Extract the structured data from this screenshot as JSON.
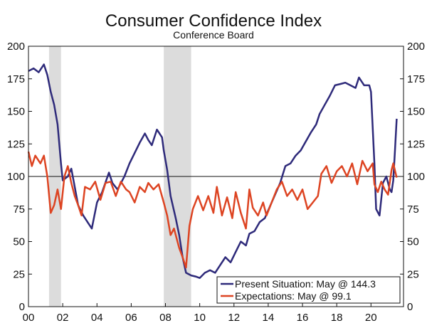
{
  "chart_data": {
    "type": "line",
    "title": "Consumer Confidence Index",
    "subtitle": "Conference Board",
    "xlabel": "",
    "ylabel": "",
    "xlim": [
      2000.0,
      2021.9
    ],
    "ylim": [
      0,
      200
    ],
    "x_ticks": [
      2000,
      2002,
      2004,
      2006,
      2008,
      2010,
      2012,
      2014,
      2016,
      2018,
      2020
    ],
    "x_tick_labels": [
      "00",
      "02",
      "04",
      "06",
      "08",
      "10",
      "12",
      "14",
      "16",
      "18",
      "20"
    ],
    "y_ticks": [
      0,
      25,
      50,
      75,
      100,
      125,
      150,
      175,
      200
    ],
    "y_tick_labels": [
      "0",
      "25",
      "50",
      "75",
      "100",
      "125",
      "150",
      "175",
      "200"
    ],
    "reference_line": 100,
    "recessions": [
      [
        2001.2,
        2001.9
      ],
      [
        2007.9,
        2009.5
      ]
    ],
    "legend_position": "bottom-right",
    "series": [
      {
        "name": "Present Situation: May @ 144.3",
        "color": "#2e2a7a",
        "points": [
          [
            2000.0,
            181
          ],
          [
            2000.3,
            183
          ],
          [
            2000.6,
            180
          ],
          [
            2000.9,
            186
          ],
          [
            2001.1,
            178
          ],
          [
            2001.3,
            165
          ],
          [
            2001.5,
            155
          ],
          [
            2001.7,
            140
          ],
          [
            2001.9,
            110
          ],
          [
            2002.0,
            97
          ],
          [
            2002.3,
            100
          ],
          [
            2002.5,
            106
          ],
          [
            2002.7,
            92
          ],
          [
            2002.9,
            78
          ],
          [
            2003.2,
            70
          ],
          [
            2003.5,
            64
          ],
          [
            2003.7,
            60
          ],
          [
            2004.0,
            80
          ],
          [
            2004.3,
            88
          ],
          [
            2004.7,
            103
          ],
          [
            2004.9,
            95
          ],
          [
            2005.2,
            90
          ],
          [
            2005.6,
            100
          ],
          [
            2005.9,
            110
          ],
          [
            2006.2,
            118
          ],
          [
            2006.5,
            126
          ],
          [
            2006.8,
            133
          ],
          [
            2007.0,
            128
          ],
          [
            2007.2,
            124
          ],
          [
            2007.5,
            136
          ],
          [
            2007.8,
            130
          ],
          [
            2007.9,
            120
          ],
          [
            2008.1,
            105
          ],
          [
            2008.3,
            85
          ],
          [
            2008.6,
            68
          ],
          [
            2008.8,
            55
          ],
          [
            2009.0,
            38
          ],
          [
            2009.2,
            26
          ],
          [
            2009.5,
            24
          ],
          [
            2009.8,
            23
          ],
          [
            2010.0,
            22
          ],
          [
            2010.3,
            26
          ],
          [
            2010.6,
            28
          ],
          [
            2010.9,
            26
          ],
          [
            2011.2,
            32
          ],
          [
            2011.5,
            38
          ],
          [
            2011.8,
            34
          ],
          [
            2012.1,
            42
          ],
          [
            2012.4,
            50
          ],
          [
            2012.7,
            47
          ],
          [
            2012.9,
            56
          ],
          [
            2013.2,
            58
          ],
          [
            2013.5,
            65
          ],
          [
            2013.8,
            68
          ],
          [
            2014.1,
            77
          ],
          [
            2014.4,
            86
          ],
          [
            2014.7,
            95
          ],
          [
            2015.0,
            108
          ],
          [
            2015.3,
            110
          ],
          [
            2015.6,
            116
          ],
          [
            2015.9,
            120
          ],
          [
            2016.2,
            127
          ],
          [
            2016.5,
            134
          ],
          [
            2016.8,
            140
          ],
          [
            2017.0,
            148
          ],
          [
            2017.3,
            155
          ],
          [
            2017.6,
            162
          ],
          [
            2017.9,
            170
          ],
          [
            2018.2,
            171
          ],
          [
            2018.5,
            172
          ],
          [
            2018.8,
            170
          ],
          [
            2019.1,
            168
          ],
          [
            2019.3,
            176
          ],
          [
            2019.6,
            170
          ],
          [
            2019.9,
            170
          ],
          [
            2020.0,
            165
          ],
          [
            2020.2,
            110
          ],
          [
            2020.3,
            75
          ],
          [
            2020.5,
            70
          ],
          [
            2020.7,
            95
          ],
          [
            2020.9,
            100
          ],
          [
            2021.1,
            90
          ],
          [
            2021.2,
            88
          ],
          [
            2021.3,
            97
          ],
          [
            2021.4,
            120
          ],
          [
            2021.5,
            144.3
          ]
        ]
      },
      {
        "name": "Expectations: May @ 99.1",
        "color": "#dd4422",
        "points": [
          [
            2000.0,
            119
          ],
          [
            2000.2,
            108
          ],
          [
            2000.4,
            116
          ],
          [
            2000.7,
            110
          ],
          [
            2000.9,
            116
          ],
          [
            2001.1,
            100
          ],
          [
            2001.3,
            72
          ],
          [
            2001.5,
            78
          ],
          [
            2001.7,
            90
          ],
          [
            2001.9,
            75
          ],
          [
            2002.1,
            100
          ],
          [
            2002.3,
            108
          ],
          [
            2002.5,
            95
          ],
          [
            2002.7,
            85
          ],
          [
            2002.9,
            78
          ],
          [
            2003.1,
            70
          ],
          [
            2003.3,
            92
          ],
          [
            2003.6,
            90
          ],
          [
            2003.9,
            96
          ],
          [
            2004.2,
            82
          ],
          [
            2004.5,
            95
          ],
          [
            2004.8,
            96
          ],
          [
            2005.1,
            85
          ],
          [
            2005.4,
            96
          ],
          [
            2005.7,
            90
          ],
          [
            2005.9,
            88
          ],
          [
            2006.2,
            80
          ],
          [
            2006.5,
            92
          ],
          [
            2006.8,
            88
          ],
          [
            2007.0,
            95
          ],
          [
            2007.3,
            90
          ],
          [
            2007.6,
            94
          ],
          [
            2007.9,
            80
          ],
          [
            2008.1,
            70
          ],
          [
            2008.3,
            55
          ],
          [
            2008.5,
            60
          ],
          [
            2008.8,
            45
          ],
          [
            2009.0,
            38
          ],
          [
            2009.2,
            30
          ],
          [
            2009.4,
            62
          ],
          [
            2009.6,
            75
          ],
          [
            2009.9,
            85
          ],
          [
            2010.2,
            74
          ],
          [
            2010.5,
            85
          ],
          [
            2010.8,
            72
          ],
          [
            2011.0,
            92
          ],
          [
            2011.3,
            70
          ],
          [
            2011.6,
            84
          ],
          [
            2011.9,
            68
          ],
          [
            2012.1,
            88
          ],
          [
            2012.4,
            72
          ],
          [
            2012.7,
            60
          ],
          [
            2012.9,
            90
          ],
          [
            2013.1,
            76
          ],
          [
            2013.4,
            70
          ],
          [
            2013.7,
            80
          ],
          [
            2013.9,
            70
          ],
          [
            2014.2,
            80
          ],
          [
            2014.5,
            90
          ],
          [
            2014.8,
            96
          ],
          [
            2015.1,
            85
          ],
          [
            2015.4,
            90
          ],
          [
            2015.7,
            82
          ],
          [
            2016.0,
            90
          ],
          [
            2016.3,
            75
          ],
          [
            2016.6,
            80
          ],
          [
            2016.9,
            85
          ],
          [
            2017.1,
            102
          ],
          [
            2017.4,
            108
          ],
          [
            2017.7,
            95
          ],
          [
            2018.0,
            104
          ],
          [
            2018.3,
            108
          ],
          [
            2018.6,
            100
          ],
          [
            2018.9,
            110
          ],
          [
            2019.2,
            94
          ],
          [
            2019.5,
            112
          ],
          [
            2019.8,
            104
          ],
          [
            2020.1,
            110
          ],
          [
            2020.2,
            94
          ],
          [
            2020.4,
            88
          ],
          [
            2020.6,
            96
          ],
          [
            2020.8,
            90
          ],
          [
            2021.0,
            86
          ],
          [
            2021.2,
            105
          ],
          [
            2021.3,
            110
          ],
          [
            2021.5,
            99.1
          ]
        ]
      }
    ]
  }
}
